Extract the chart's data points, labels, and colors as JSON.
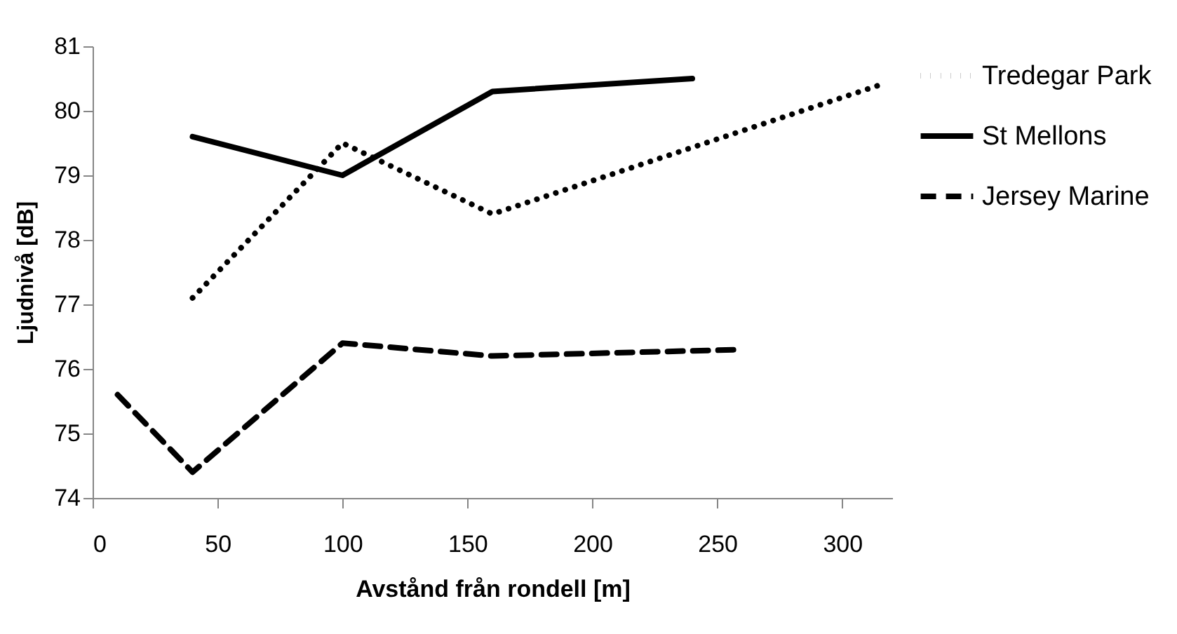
{
  "chart_data": {
    "type": "line",
    "xlabel": "Avstånd från rondell [m]",
    "ylabel": "Ljudnivå [dB]",
    "xlim": [
      0,
      320
    ],
    "xticks": [
      0,
      50,
      100,
      150,
      200,
      250,
      300
    ],
    "ylim": [
      74,
      81
    ],
    "yticks": [
      74,
      75,
      76,
      77,
      78,
      79,
      80,
      81
    ],
    "grid": false,
    "legend": "right",
    "marker": "none",
    "series": [
      {
        "name": "Tredegar Park",
        "color": "#000000",
        "line_style": "dotted",
        "x": [
          40,
          100,
          160,
          315
        ],
        "values": [
          77.1,
          79.5,
          78.4,
          80.4
        ]
      },
      {
        "name": "St Mellons",
        "color": "#000000",
        "line_style": "solid",
        "x": [
          40,
          100,
          160,
          240
        ],
        "values": [
          79.6,
          79.0,
          80.3,
          80.5
        ]
      },
      {
        "name": "Jersey Marine",
        "color": "#000000",
        "line_style": "dashed",
        "x": [
          10,
          40,
          100,
          160,
          260
        ],
        "values": [
          75.6,
          74.4,
          76.4,
          76.2,
          76.3
        ]
      }
    ]
  }
}
